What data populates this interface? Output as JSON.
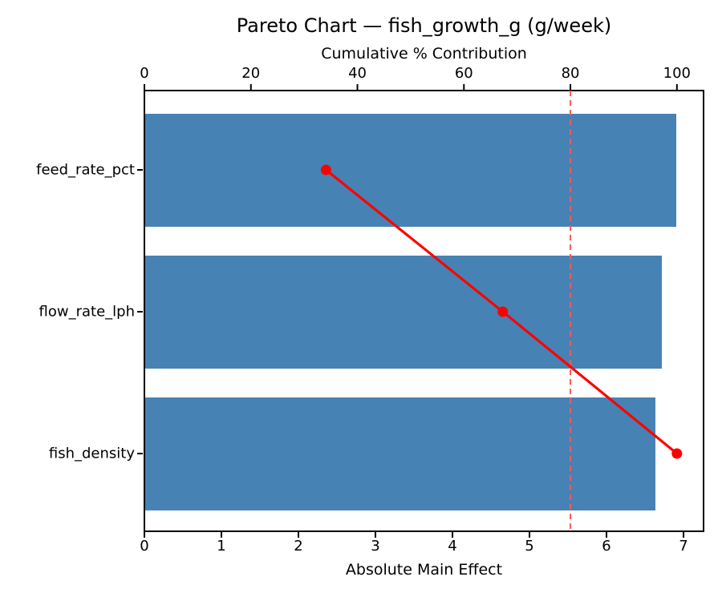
{
  "chart": {
    "title": "Pareto Chart — fish_growth_g (g/week)",
    "top_axis_label": "Cumulative % Contribution",
    "bottom_axis_label": "Absolute Main Effect"
  },
  "chart_data": {
    "type": "bar",
    "subtype": "pareto-horizontal",
    "title": "Pareto Chart — fish_growth_g (g/week)",
    "categories": [
      "feed_rate_pct",
      "flow_rate_lph",
      "fish_density"
    ],
    "series": [
      {
        "name": "Absolute Main Effect",
        "type": "bar",
        "values": [
          6.91,
          6.72,
          6.63
        ]
      },
      {
        "name": "Cumulative % Contribution",
        "type": "line",
        "values": [
          34.1,
          67.3,
          100.0
        ]
      }
    ],
    "threshold_pct": 80,
    "x_axis_bottom": {
      "label": "Absolute Main Effect",
      "ticks": [
        0,
        1,
        2,
        3,
        4,
        5,
        6,
        7
      ],
      "range": [
        0,
        7.26
      ]
    },
    "x_axis_top": {
      "label": "Cumulative % Contribution",
      "ticks": [
        0,
        20,
        40,
        60,
        80,
        100
      ],
      "range": [
        0,
        105
      ]
    },
    "legend": "none",
    "grid": false,
    "colors": {
      "bar": "#4682B4",
      "cumulative_line": "#FF0000",
      "threshold_line": "#FF5A5A",
      "axis": "#000000"
    }
  }
}
